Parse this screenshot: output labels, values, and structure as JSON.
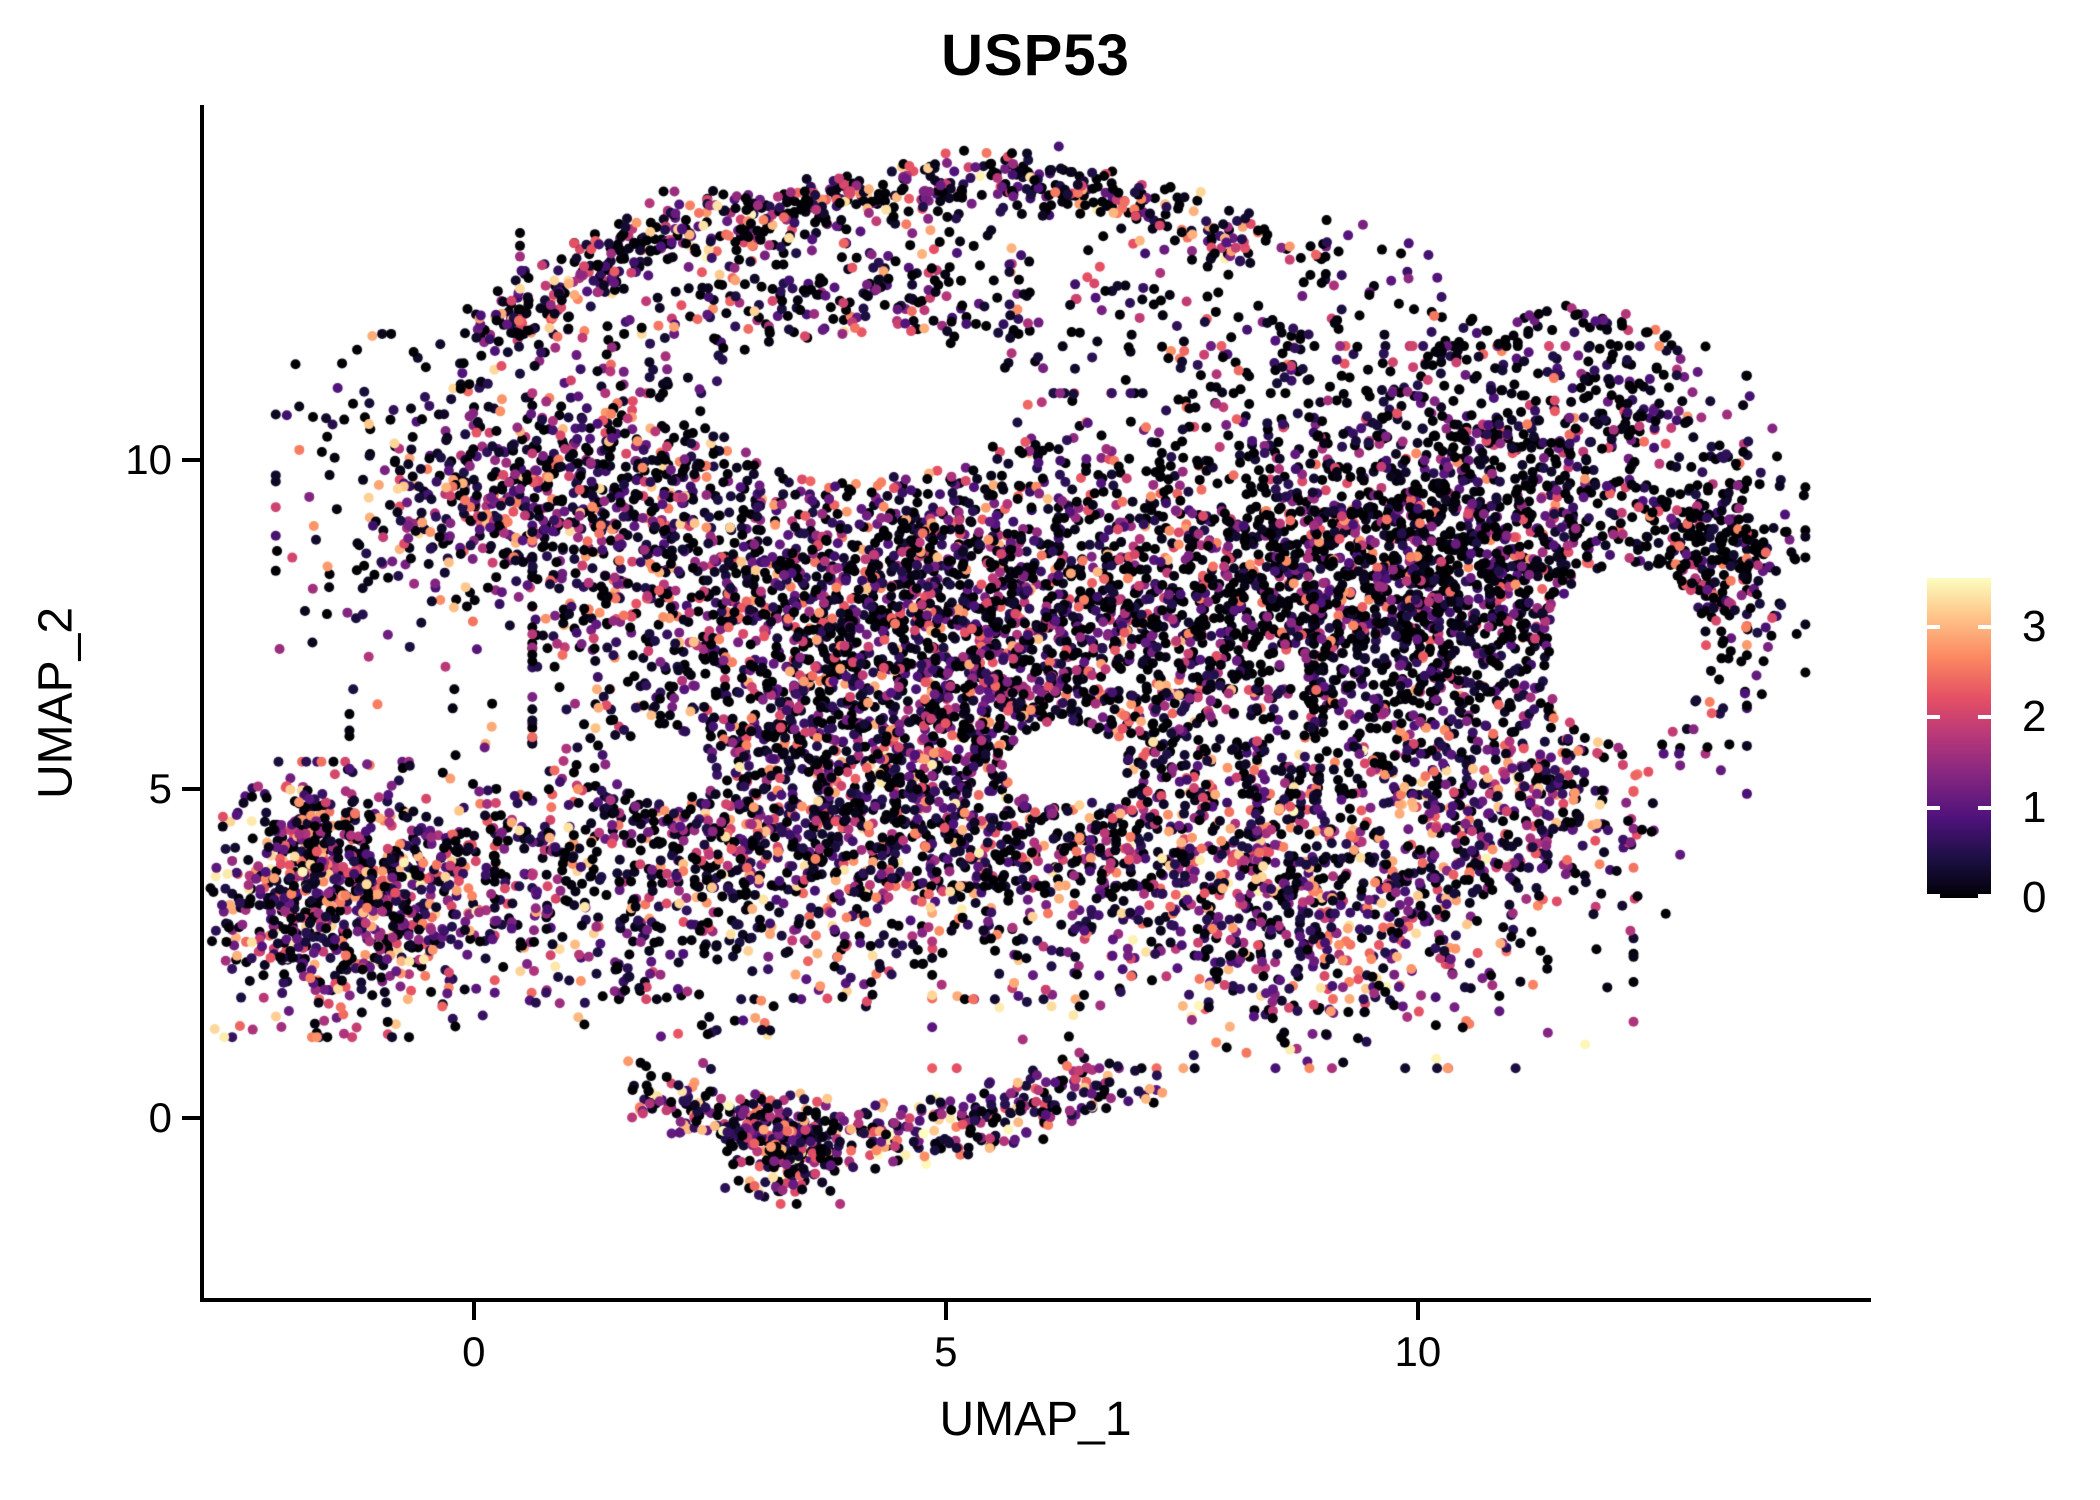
{
  "title": "USP53",
  "axes": {
    "x": {
      "label": "UMAP_1",
      "ticks": [
        0,
        5,
        10
      ]
    },
    "y": {
      "label": "UMAP_2",
      "ticks": [
        0,
        5,
        10
      ]
    }
  },
  "legend": {
    "ticks": [
      0,
      1,
      2,
      3
    ],
    "vmax": 3.54,
    "colormap": "magma",
    "stops": [
      [
        0.0,
        "#000004"
      ],
      [
        0.125,
        "#1c1044"
      ],
      [
        0.25,
        "#4f127b"
      ],
      [
        0.375,
        "#812581"
      ],
      [
        0.5,
        "#b5367a"
      ],
      [
        0.625,
        "#e55064"
      ],
      [
        0.75,
        "#fb8761"
      ],
      [
        0.875,
        "#fec287"
      ],
      [
        1.0,
        "#fcfdbf"
      ]
    ]
  },
  "chart_data": {
    "type": "scatter",
    "title": "USP53",
    "xlabel": "UMAP_1",
    "ylabel": "UMAP_2",
    "xlim": [
      -2.9,
      14.8
    ],
    "ylim": [
      -2.8,
      15.4
    ],
    "x_ticks": [
      0,
      5,
      10
    ],
    "y_ticks": [
      0,
      5,
      10
    ],
    "grid": false,
    "legend_position": "right",
    "point_radius_px": 5,
    "n_points_total": 12380,
    "value_domain": [
      0,
      3.54
    ],
    "seed": 1337,
    "clusters": [
      {
        "name": "top-arm-ridge",
        "shape": "chain",
        "pts": [
          [
            0.11,
            11.82
          ],
          [
            1.8,
            13.34
          ],
          [
            3.81,
            13.94
          ],
          [
            5.82,
            14.35
          ],
          [
            7.04,
            13.87
          ],
          [
            8.04,
            13.19
          ]
        ],
        "th": 0.45,
        "n": 650,
        "k": 2.4,
        "p0": 0.12,
        "vm": 3.5
      },
      {
        "name": "top-arm-fill",
        "shape": "gauss",
        "c": [
          4.02,
          12.43
        ],
        "r": [
          3.07,
          1.44
        ],
        "n": 380,
        "k": 2.6,
        "p0": 0.15,
        "vm": 3.3
      },
      {
        "name": "upper-left-shoulder",
        "shape": "gauss",
        "c": [
          0.95,
          9.39
        ],
        "r": [
          2.65,
          2.2
        ],
        "n": 900,
        "k": 2.4,
        "p0": 0.1,
        "vm": 3.3
      },
      {
        "name": "central-dense",
        "shape": "gauss",
        "c": [
          4.76,
          7.27
        ],
        "r": [
          3.6,
          3.26
        ],
        "n": 2900,
        "k": 2.7,
        "p0": 0.11,
        "vm": 3.1
      },
      {
        "name": "right-dense",
        "shape": "gauss",
        "c": [
          9.84,
          8.33
        ],
        "r": [
          3.17,
          2.96
        ],
        "n": 2400,
        "k": 3.3,
        "p0": 0.2,
        "vm": 2.8
      },
      {
        "name": "far-right-edge",
        "shape": "gauss",
        "c": [
          13.07,
          8.41
        ],
        "r": [
          0.9,
          2.5
        ],
        "n": 330,
        "k": 3.2,
        "p0": 0.25,
        "vm": 2.8
      },
      {
        "name": "top-right-sparse",
        "shape": "uniform",
        "c": [
          8.57,
          12.43
        ],
        "r": [
          1.9,
          1.29
        ],
        "n": 130,
        "k": 3.0,
        "p0": 0.2,
        "vm": 2.8
      },
      {
        "name": "upper-right-fill",
        "shape": "uniform",
        "c": [
          11.43,
          11.21
        ],
        "r": [
          1.48,
          1.21
        ],
        "n": 200,
        "k": 3.2,
        "p0": 0.22,
        "vm": 2.8
      },
      {
        "name": "mid-lower-band",
        "shape": "gauss",
        "c": [
          3.49,
          4.16
        ],
        "r": [
          4.18,
          2.05
        ],
        "n": 1250,
        "k": 2.3,
        "p0": 0.1,
        "vm": 3.4
      },
      {
        "name": "lower-right-warm",
        "shape": "gauss",
        "c": [
          8.57,
          3.63
        ],
        "r": [
          3.23,
          2.5
        ],
        "n": 1150,
        "k": 1.9,
        "p0": 0.06,
        "vm": 3.5
      },
      {
        "name": "right-bottom-edge",
        "shape": "gauss",
        "c": [
          10.95,
          4.84
        ],
        "r": [
          1.59,
          1.9
        ],
        "n": 350,
        "k": 2.2,
        "p0": 0.1,
        "vm": 3.3
      },
      {
        "name": "lower-sparse-bridge",
        "shape": "uniform",
        "c": [
          2.43,
          2.11
        ],
        "r": [
          2.12,
          0.91
        ],
        "n": 90,
        "k": 2.0,
        "p0": 0.1,
        "vm": 3.4
      },
      {
        "name": "bottom-chain",
        "shape": "chain",
        "pts": [
          [
            1.8,
            0.44
          ],
          [
            3.07,
            -0.17
          ],
          [
            4.23,
            -0.32
          ],
          [
            5.08,
            -0.17
          ],
          [
            6.24,
            0.36
          ],
          [
            6.98,
            0.52
          ]
        ],
        "th": 0.5,
        "n": 430,
        "k": 2.0,
        "p0": 0.08,
        "vm": 3.6
      },
      {
        "name": "bottom-tail-blob",
        "shape": "gauss",
        "c": [
          3.33,
          -0.47
        ],
        "r": [
          0.58,
          0.73
        ],
        "n": 200,
        "k": 2.0,
        "p0": 0.1,
        "vm": 3.6
      },
      {
        "name": "left-island",
        "shape": "gauss",
        "c": [
          -1.48,
          3.32
        ],
        "r": [
          1.48,
          1.82
        ],
        "n": 800,
        "k": 2.1,
        "p0": 0.09,
        "vm": 3.5
      },
      {
        "name": "left-island-tail",
        "shape": "gauss",
        "c": [
          -1.75,
          4.3
        ],
        "r": [
          0.28,
          0.75
        ],
        "n": 90,
        "k": 2.3,
        "p0": 0.12,
        "vm": 3.4
      },
      {
        "name": "left-island-bridge",
        "shape": "uniform",
        "c": [
          0.11,
          3.47
        ],
        "r": [
          1.27,
          1.06
        ],
        "n": 130,
        "k": 2.2,
        "p0": 0.1,
        "vm": 3.4
      }
    ],
    "holes": [
      {
        "c": [
          4.13,
          10.83
        ],
        "r": [
          1.64,
          1.09
        ]
      },
      {
        "c": [
          12.22,
          7.04
        ],
        "r": [
          0.83,
          1.4
        ]
      },
      {
        "c": [
          6.24,
          5.37
        ],
        "r": [
          0.63,
          0.64
        ]
      },
      {
        "c": [
          2.01,
          5.3
        ],
        "r": [
          0.51,
          0.52
        ]
      }
    ]
  }
}
